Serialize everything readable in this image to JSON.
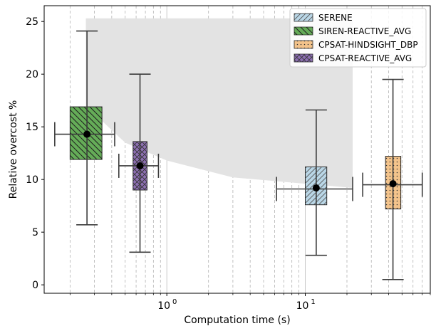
{
  "chart_data": {
    "type": "box",
    "xlabel": "Computation time (s)",
    "ylabel": "Relative overcost %",
    "xscale": "log",
    "xlim": [
      0.13,
      80
    ],
    "ylim": [
      -0.8,
      26.5
    ],
    "x_ticks": [
      {
        "value": 1,
        "base": "10",
        "exp": "0"
      },
      {
        "value": 10,
        "base": "10",
        "exp": "1"
      }
    ],
    "y_ticks": [
      0,
      5,
      10,
      15,
      20,
      25
    ],
    "grid": "x-minor dashed",
    "legend_position": "top-right",
    "shaded_region": {
      "color": "#e3e3e3",
      "upper": [
        [
          0.26,
          25.3
        ],
        [
          22,
          25.3
        ]
      ],
      "lower": [
        [
          0.26,
          17.0
        ],
        [
          0.5,
          13.5
        ],
        [
          1,
          11.8
        ],
        [
          3,
          10.2
        ],
        [
          10,
          9.6
        ],
        [
          22,
          9.2
        ]
      ]
    },
    "series": [
      {
        "name": "SERENE",
        "color": "#b9d6e6",
        "hatch": "diag-up",
        "x_center": 12,
        "box_x_range": [
          10,
          14.3
        ],
        "whisker_x": [
          6.2,
          22
        ],
        "q1": 7.6,
        "median": 9.1,
        "q3": 11.2,
        "whisker_low": 2.8,
        "whisker_high": 16.6,
        "mean": 9.2
      },
      {
        "name": "SIREN-REACTIVE_AVG",
        "color": "#65ac58",
        "hatch": "diag-down",
        "x_center": 0.265,
        "box_x_range": [
          0.2,
          0.34
        ],
        "whisker_x": [
          0.155,
          0.42
        ],
        "q1": 11.9,
        "median": 14.3,
        "q3": 16.9,
        "whisker_low": 5.7,
        "whisker_high": 24.1,
        "mean": 14.3
      },
      {
        "name": "CPSAT-HINDSIGHT_DBP",
        "color": "#f3c38b",
        "hatch": "dots",
        "x_center": 43,
        "box_x_range": [
          38,
          49
        ],
        "whisker_x": [
          26,
          70
        ],
        "q1": 7.2,
        "median": 9.5,
        "q3": 12.2,
        "whisker_low": 0.5,
        "whisker_high": 19.5,
        "mean": 9.6
      },
      {
        "name": "CPSAT-REACTIVE_AVG",
        "color": "#8d6fb2",
        "hatch": "cross",
        "x_center": 0.64,
        "box_x_range": [
          0.57,
          0.72
        ],
        "whisker_x": [
          0.45,
          0.87
        ],
        "q1": 9.0,
        "median": 11.3,
        "q3": 13.6,
        "whisker_low": 3.1,
        "whisker_high": 20.0,
        "mean": 11.3
      }
    ]
  }
}
